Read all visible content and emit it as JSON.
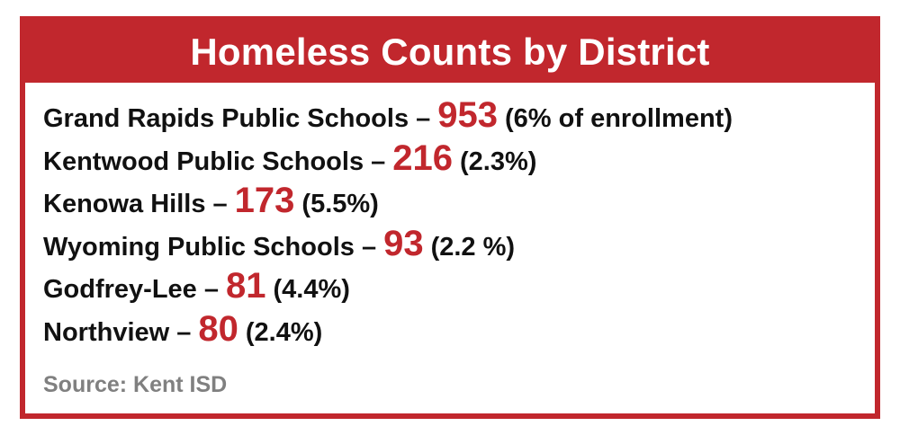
{
  "title": "Homeless Counts by District",
  "districts": [
    {
      "name": "Grand Rapids Public Schools –",
      "count": "953",
      "note": "(6% of enrollment)"
    },
    {
      "name": "Kentwood Public Schools –",
      "count": "216",
      "note": "(2.3%)"
    },
    {
      "name": "Kenowa Hills –",
      "count": "173",
      "note": "(5.5%)"
    },
    {
      "name": "Wyoming Public Schools –",
      "count": "93",
      "note": "(2.2 %)"
    },
    {
      "name": "Godfrey-Lee –",
      "count": "81",
      "note": "(4.4%)"
    },
    {
      "name": "Northview –",
      "count": "80",
      "note": "(2.4%)"
    }
  ],
  "source": "Source: Kent ISD",
  "colors": {
    "accent": "#c1272d",
    "text": "#111111",
    "source": "#808080"
  }
}
